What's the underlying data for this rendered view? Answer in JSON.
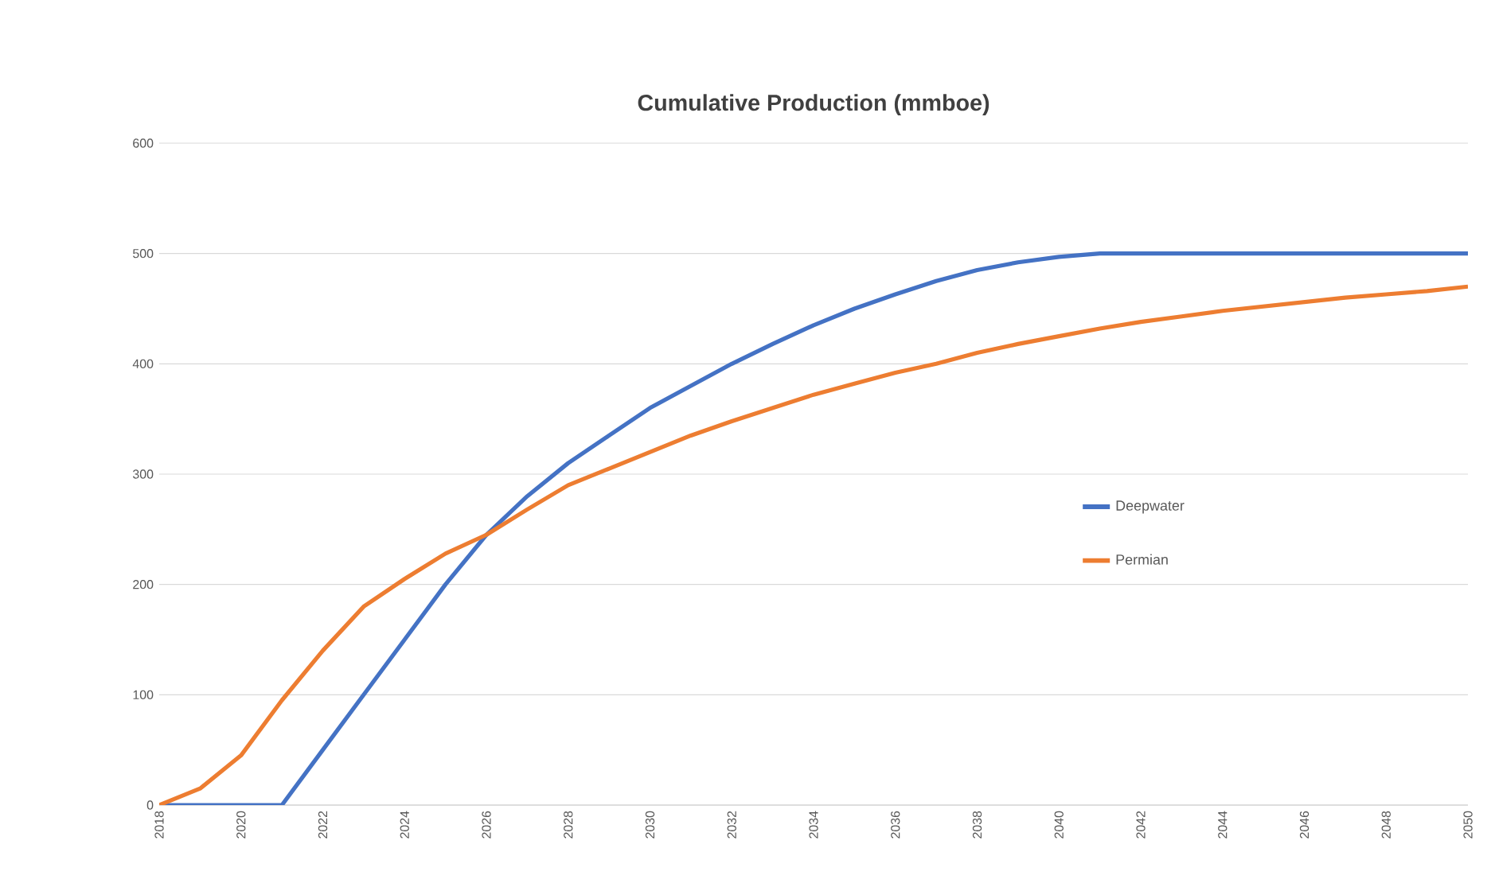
{
  "chart_data": {
    "type": "line",
    "title": "Cumulative Production (mmboe)",
    "x": [
      2018,
      2019,
      2020,
      2021,
      2022,
      2023,
      2024,
      2025,
      2026,
      2027,
      2028,
      2029,
      2030,
      2031,
      2032,
      2033,
      2034,
      2035,
      2036,
      2037,
      2038,
      2039,
      2040,
      2041,
      2042,
      2043,
      2044,
      2045,
      2046,
      2047,
      2048,
      2049,
      2050
    ],
    "series": [
      {
        "name": "Deepwater",
        "color": "#4472c4",
        "values": [
          0,
          0,
          0,
          0,
          50,
          100,
          150,
          200,
          245,
          280,
          310,
          335,
          360,
          380,
          400,
          418,
          435,
          450,
          463,
          475,
          485,
          492,
          497,
          500,
          500,
          500,
          500,
          500,
          500,
          500,
          500,
          500,
          500
        ]
      },
      {
        "name": "Permian",
        "color": "#ed7d31",
        "values": [
          0,
          15,
          45,
          95,
          140,
          180,
          205,
          228,
          245,
          268,
          290,
          305,
          320,
          335,
          348,
          360,
          372,
          382,
          392,
          400,
          410,
          418,
          425,
          432,
          438,
          443,
          448,
          452,
          456,
          460,
          463,
          466,
          470
        ]
      }
    ],
    "xlim": [
      2018,
      2050
    ],
    "xticks": [
      2018,
      2020,
      2022,
      2024,
      2026,
      2028,
      2030,
      2032,
      2034,
      2036,
      2038,
      2040,
      2042,
      2044,
      2046,
      2048,
      2050
    ],
    "ylim": [
      0,
      600
    ],
    "yticks": [
      0,
      100,
      200,
      300,
      400,
      500,
      600
    ],
    "grid": "y",
    "legend": "right"
  }
}
